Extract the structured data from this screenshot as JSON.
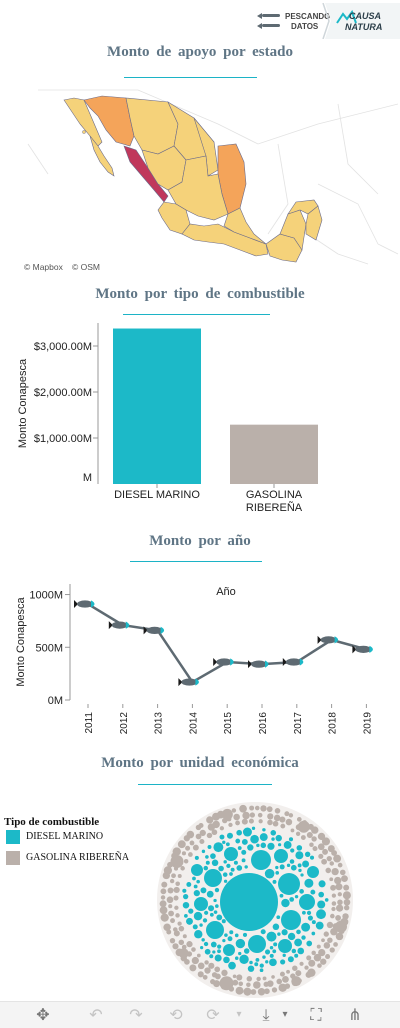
{
  "brand": {
    "logo1_line1": "PESCANDO",
    "logo1_line2": "DATOS",
    "logo2_line1": "CAUSA",
    "logo2_line2": "NATURA"
  },
  "colors": {
    "teal": "#1cb9c8",
    "taupe": "#bab0aa",
    "title": "#5f7585",
    "line": "#5e6a72"
  },
  "map_section": {
    "title": "Monto de apoyo por estado",
    "attribution1": "© Mapbox",
    "attribution2": "© OSM"
  },
  "bar_section": {
    "title": "Monto por tipo de combustible"
  },
  "line_section": {
    "title": "Monto por año"
  },
  "bubble_section": {
    "title": "Monto por unidad económica",
    "legend_title": "Tipo de combustible",
    "legend_items": [
      "DIESEL MARINO",
      "GASOLINA RIBEREÑA"
    ]
  },
  "chart_data": [
    {
      "type": "bar",
      "categories": [
        "DIESEL MARINO",
        "GASOLINA RIBEREÑA"
      ],
      "category_lines": [
        [
          "DIESEL MARINO"
        ],
        [
          "GASOLINA",
          "RIBEREÑA"
        ]
      ],
      "values": [
        3380,
        1290
      ],
      "ylabel": "Monto Conapesca",
      "ylim": [
        0,
        3500
      ],
      "yticks": [
        1000,
        2000,
        3000
      ],
      "ytick_labels": [
        "$1,000.00M",
        "$2,000.00M",
        "$3,000.00M"
      ],
      "partial_tick_label": "M",
      "colors": [
        "#1cb9c8",
        "#bab0aa"
      ],
      "grid": false
    },
    {
      "type": "line",
      "title": "Año",
      "x": [
        "2011",
        "2012",
        "2013",
        "2014",
        "2015",
        "2016",
        "2017",
        "2018",
        "2019"
      ],
      "values": [
        910,
        710,
        660,
        170,
        360,
        340,
        360,
        570,
        480
      ],
      "ylabel": "Monto Conapesca",
      "ylim": [
        0,
        1100
      ],
      "yticks": [
        0,
        500,
        1000
      ],
      "ytick_labels": [
        "0M",
        "500M",
        "1000M"
      ],
      "marker": "fish",
      "grid": false
    },
    {
      "type": "bubble",
      "series": [
        {
          "name": "DIESEL MARINO",
          "color": "#1cb9c8"
        },
        {
          "name": "GASOLINA RIBEREÑA",
          "color": "#bab0aa"
        }
      ]
    }
  ]
}
